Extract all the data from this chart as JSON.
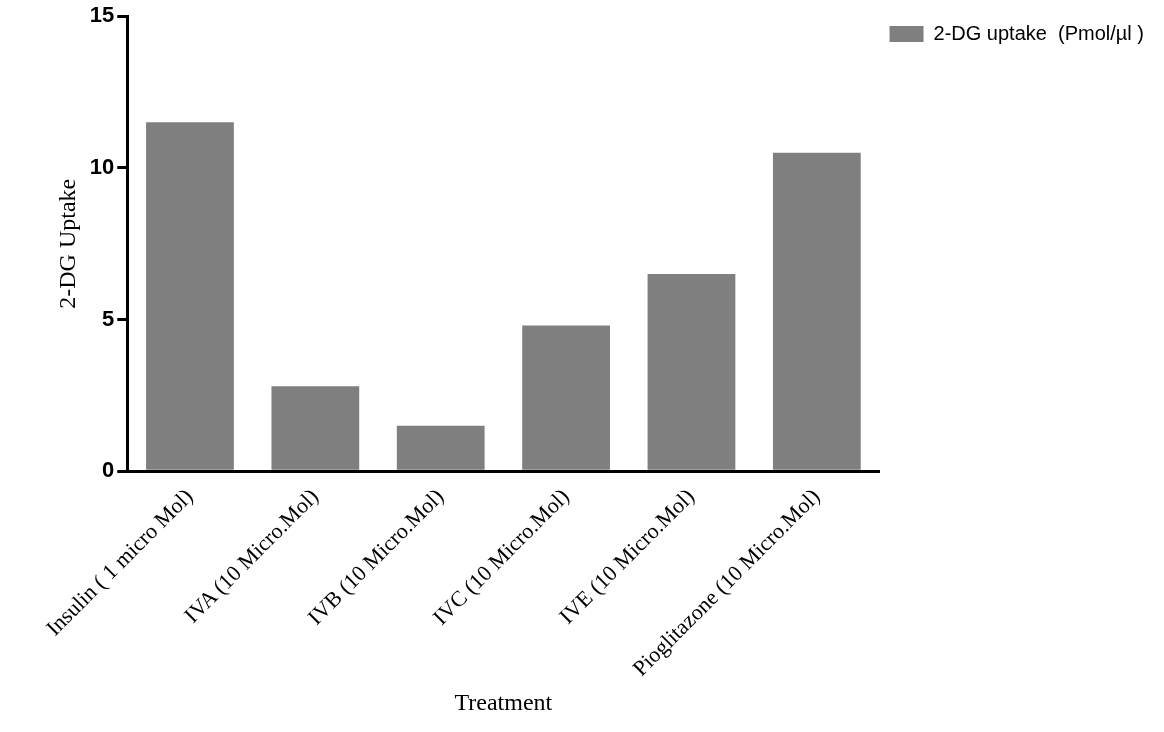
{
  "chart_data": {
    "type": "bar",
    "xlabel": "Treatment",
    "ylabel": "2-DG Uptake",
    "categories": [
      "Insulin ( 1 micro Mol)",
      "IVA (10 Micro.Mol)",
      "IVB (10 Micro.Mol)",
      "IVC (10 Micro.Mol)",
      "IVE (10 Micro.Mol)",
      "Pioglitazone (10 Micro.Mol)"
    ],
    "series": [
      {
        "name": "2-DG uptake  (Pmol/µl )",
        "color": "#7f7f7f",
        "values": [
          11.5,
          2.8,
          1.5,
          4.8,
          6.5,
          10.5
        ]
      }
    ],
    "ylim": [
      0,
      15
    ],
    "yticks": [
      0,
      5,
      10,
      15
    ],
    "grid": false,
    "legend": "top right"
  }
}
